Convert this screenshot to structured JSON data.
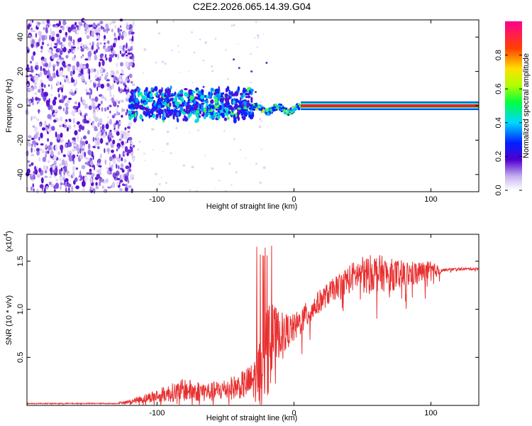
{
  "title": "C2E2.2026.065.14.39.G04",
  "colors": {
    "snr_line": "#e83030",
    "axis": "#000000"
  },
  "chart_data": [
    {
      "type": "heatmap",
      "name": "spectrogram",
      "xlabel": "Height of straight line (km)",
      "ylabel": "Frequency (Hz)",
      "xlim": [
        -195,
        135
      ],
      "ylim": [
        -50,
        50
      ],
      "x_ticks": [
        -100,
        0,
        100
      ],
      "y_ticks": [
        -40,
        -20,
        0,
        20,
        40
      ],
      "colorbar": {
        "label": "Normalized spectral amplitude",
        "range": [
          0,
          1
        ],
        "ticks": [
          0.0,
          0.2,
          0.4,
          0.6,
          0.8
        ],
        "tick_labels": [
          "0.0",
          "0.2",
          "0.4",
          "0.6",
          "0.8"
        ]
      },
      "features": {
        "noise_region_x": [
          -195,
          -120
        ],
        "noisy_band_x": [
          -120,
          -30
        ],
        "transition_x": [
          -30,
          5
        ],
        "carrier_x": [
          5,
          135
        ],
        "carrier_frequency_hz": 0
      }
    },
    {
      "type": "line",
      "name": "snr",
      "xlabel": "Height of straight line (km)",
      "ylabel": "SNR (10 * v/v)",
      "y_multiplier_label": "(x10",
      "y_multiplier_exponent": "4",
      "xlim": [
        -195,
        135
      ],
      "ylim": [
        0,
        1.78
      ],
      "x_ticks": [
        -100,
        0,
        100
      ],
      "y_ticks": [
        0.5,
        1.0,
        1.5
      ],
      "y_tick_labels": [
        "0.5",
        "1.0",
        "1.5"
      ],
      "envelope_x": [
        -195,
        -130,
        -120,
        -100,
        -80,
        -60,
        -40,
        -30,
        -25,
        -20,
        -15,
        -10,
        0,
        10,
        20,
        30,
        40,
        50,
        60,
        70,
        80,
        90,
        100,
        110,
        120,
        135
      ],
      "envelope_y": [
        0.02,
        0.02,
        0.04,
        0.1,
        0.16,
        0.14,
        0.2,
        0.25,
        0.35,
        0.55,
        0.7,
        0.75,
        0.8,
        0.95,
        1.1,
        1.22,
        1.32,
        1.38,
        1.38,
        1.36,
        1.36,
        1.38,
        1.4,
        1.41,
        1.42,
        1.42
      ],
      "noise_amp": [
        0.005,
        0.005,
        0.02,
        0.07,
        0.12,
        0.1,
        0.13,
        0.2,
        0.35,
        0.5,
        0.35,
        0.22,
        0.15,
        0.14,
        0.12,
        0.12,
        0.15,
        0.17,
        0.2,
        0.17,
        0.15,
        0.12,
        0.1,
        0.015,
        0.012,
        0.012
      ]
    }
  ]
}
